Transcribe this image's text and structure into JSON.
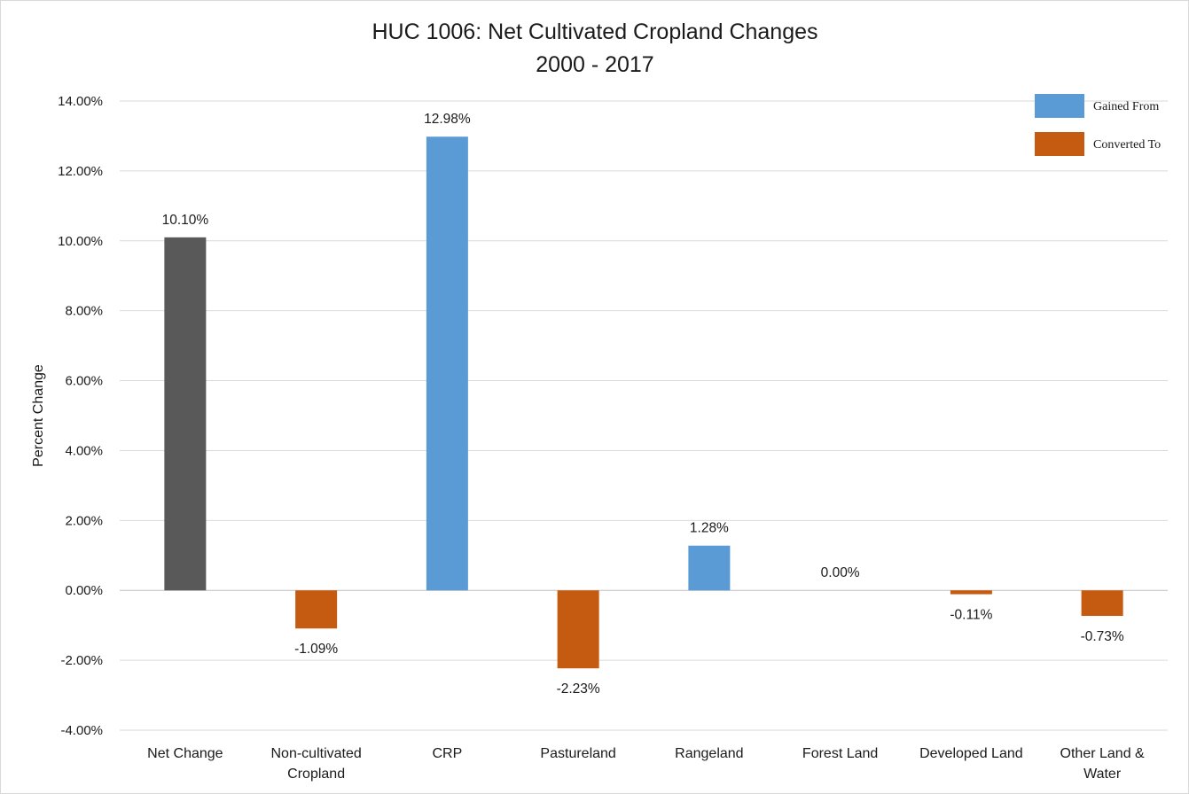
{
  "chart_data": {
    "type": "bar",
    "title": "HUC 1006: Net Cultivated Cropland Changes",
    "subtitle": "2000 - 2017",
    "xlabel": "",
    "ylabel": "Percent Change",
    "ylim": [
      -4,
      14
    ],
    "yticks": [
      14,
      12,
      10,
      8,
      6,
      4,
      2,
      0,
      -2,
      -4
    ],
    "ytick_labels": [
      "14.00%",
      "12.00%",
      "10.00%",
      "8.00%",
      "6.00%",
      "4.00%",
      "2.00%",
      "0.00%",
      "-2.00%",
      "-4.00%"
    ],
    "grid": true,
    "legend_position": "top-right",
    "legend": [
      {
        "name": "Gained From",
        "color": "#5b9bd5"
      },
      {
        "name": "Converted To",
        "color": "#c55a11"
      }
    ],
    "categories": [
      [
        "Net Change"
      ],
      [
        "Non-cultivated",
        "Cropland"
      ],
      [
        "CRP"
      ],
      [
        "Pastureland"
      ],
      [
        "Rangeland"
      ],
      [
        "Forest Land"
      ],
      [
        "Developed Land"
      ],
      [
        "Other Land &",
        "Water"
      ]
    ],
    "values": [
      10.1,
      -1.09,
      12.98,
      -2.23,
      1.28,
      0.0,
      -0.11,
      -0.73
    ],
    "data_labels": [
      "10.10%",
      "-1.09%",
      "12.98%",
      "-2.23%",
      "1.28%",
      "0.00%",
      "-0.11%",
      "-0.73%"
    ],
    "bar_colors": [
      "#595959",
      "#c55a11",
      "#5b9bd5",
      "#c55a11",
      "#5b9bd5",
      "#5b9bd5",
      "#c55a11",
      "#c55a11"
    ]
  }
}
